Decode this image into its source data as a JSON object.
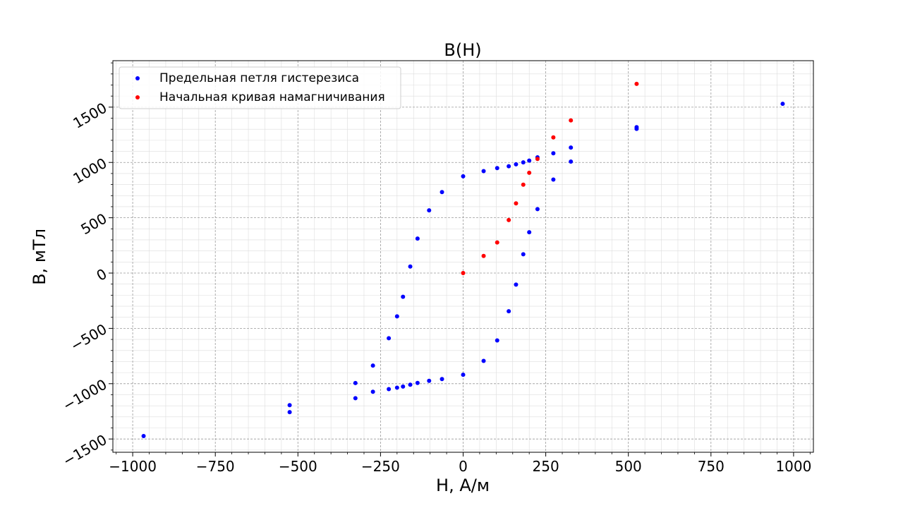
{
  "chart_data": {
    "type": "scatter",
    "title": "B(H)",
    "xlabel": "H, А/м",
    "ylabel": "B, мТл",
    "xlim": [
      -1060,
      1060
    ],
    "ylim": [
      -1620,
      1920
    ],
    "xticks": [
      -1000,
      -750,
      -500,
      -250,
      0,
      250,
      500,
      750,
      1000
    ],
    "yticks": [
      -1500,
      -1000,
      -500,
      0,
      500,
      1000,
      1500
    ],
    "xtick_labels": [
      "−1000",
      "−750",
      "−500",
      "−250",
      "0",
      "250",
      "500",
      "750",
      "1000"
    ],
    "ytick_labels": [
      "−1500",
      "−1000",
      "−500",
      "0",
      "500",
      "1000",
      "1500"
    ],
    "grid": true,
    "minor_grid": true,
    "legend_position": "top-left",
    "series": [
      {
        "name": "Предельная петля гистерезиса",
        "color": "#0000ff",
        "points": [
          [
            -967,
            -1473
          ],
          [
            -525,
            -1257
          ],
          [
            -525,
            -1194
          ],
          [
            -326,
            -1131
          ],
          [
            -326,
            -994
          ],
          [
            -273,
            -1073
          ],
          [
            -273,
            -836
          ],
          [
            -225,
            -1049
          ],
          [
            -225,
            -589
          ],
          [
            -200,
            -1036
          ],
          [
            -200,
            -391
          ],
          [
            -182,
            -1026
          ],
          [
            -182,
            -214
          ],
          [
            -160,
            -1009
          ],
          [
            -160,
            59
          ],
          [
            -138,
            -993
          ],
          [
            -138,
            312
          ],
          [
            -103,
            -974
          ],
          [
            -103,
            567
          ],
          [
            -64,
            -958
          ],
          [
            -64,
            732
          ],
          [
            0,
            -919
          ],
          [
            0,
            875
          ],
          [
            62,
            -794
          ],
          [
            62,
            922
          ],
          [
            103,
            -609
          ],
          [
            103,
            949
          ],
          [
            138,
            -345
          ],
          [
            138,
            966
          ],
          [
            160,
            -104
          ],
          [
            160,
            983
          ],
          [
            182,
            170
          ],
          [
            182,
            1001
          ],
          [
            200,
            369
          ],
          [
            200,
            1017
          ],
          [
            225,
            578
          ],
          [
            225,
            1046
          ],
          [
            273,
            845
          ],
          [
            273,
            1083
          ],
          [
            326,
            1008
          ],
          [
            326,
            1135
          ],
          [
            525,
            1304
          ],
          [
            525,
            1319
          ],
          [
            967,
            1530
          ]
        ]
      },
      {
        "name": "Начальная кривая намагничивания",
        "color": "#ff0000",
        "points": [
          [
            0,
            0
          ],
          [
            62,
            155
          ],
          [
            103,
            277
          ],
          [
            138,
            479
          ],
          [
            160,
            630
          ],
          [
            182,
            799
          ],
          [
            200,
            907
          ],
          [
            225,
            1032
          ],
          [
            273,
            1226
          ],
          [
            326,
            1380
          ],
          [
            525,
            1710
          ]
        ]
      }
    ]
  }
}
